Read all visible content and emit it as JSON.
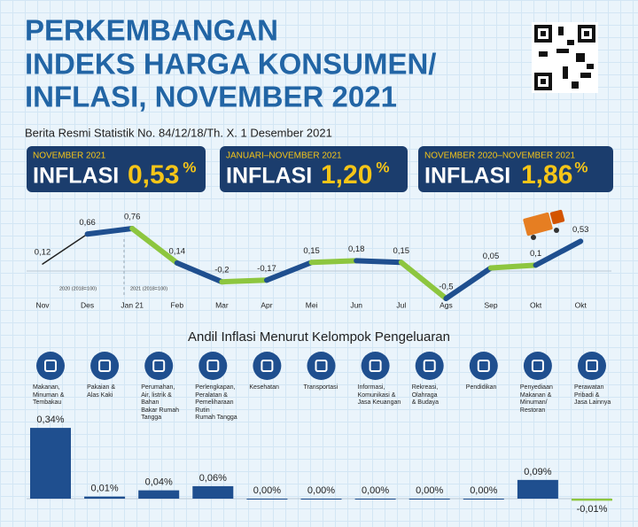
{
  "header": {
    "title_lines": [
      "PERKEMBANGAN",
      "INDEKS HARGA KONSUMEN/",
      "INFLASI, NOVEMBER 2021"
    ],
    "subtitle": "Berita Resmi Statistik No. 84/12/18/Th. X. 1 Desember 2021"
  },
  "boxes": [
    {
      "period": "NOVEMBER 2021",
      "label": "INFLASI",
      "value": "0,53",
      "unit": "%"
    },
    {
      "period": "JANUARI–NOVEMBER 2021",
      "label": "INFLASI",
      "value": "1,20",
      "unit": "%"
    },
    {
      "period": "NOVEMBER 2020–NOVEMBER 2021",
      "label": "INFLASI",
      "value": "1,86",
      "unit": "%"
    }
  ],
  "chart_data": [
    {
      "type": "line",
      "categories": [
        "Nov",
        "Des",
        "Jan 21",
        "Feb",
        "Mar",
        "Apr",
        "Mei",
        "Jun",
        "Jul",
        "Ags",
        "Sep",
        "Okt",
        "Okt"
      ],
      "values": [
        0.12,
        0.66,
        0.76,
        0.14,
        -0.2,
        -0.17,
        0.15,
        0.18,
        0.15,
        -0.5,
        0.05,
        0.1,
        0.53
      ],
      "value_labels": [
        "0,12",
        "0,66",
        "0,76",
        "0,14",
        "-0,2",
        "-0,17",
        "0,15",
        "0,18",
        "0,15",
        "-0,5",
        "0,05",
        "0,1",
        "0,53"
      ],
      "segment_colors": [
        "#222222",
        "#1f4f8f",
        "#8dc63f",
        "#1f4f8f",
        "#8dc63f",
        "#1f4f8f",
        "#8dc63f",
        "#1f4f8f",
        "#8dc63f",
        "#1f4f8f",
        "#8dc63f",
        "#1f4f8f"
      ],
      "annotations": [
        "2020 (2018=100)",
        "2021 (2018=100)"
      ]
    },
    {
      "type": "bar",
      "title": "Andil Inflasi Menurut Kelompok Pengeluaran",
      "categories": [
        "Makanan,\nMinuman &\nTembakau",
        "Pakaian &\nAlas Kaki",
        "Perumahan,\nAir, listrik &\nBahan\nBakar Rumah\nTangga",
        "Perlengkapan,\nPeralatan &\nPemeliharaan\nRutin\nRumah Tangga",
        "Kesehatan",
        "Transportasi",
        "Informasi,\nKomunikasi &\nJasa Keuangan",
        "Rekreasi,\nOlahraga\n& Budaya",
        "Pendidikan",
        "Penyediaan\nMakanan &\nMinuman/\nRestoran",
        "Perawatan\nPribadi &\nJasa Lainnya"
      ],
      "values": [
        0.34,
        0.01,
        0.04,
        0.06,
        0,
        0,
        0,
        0,
        0,
        0.09,
        -0.01
      ],
      "value_labels": [
        "0,34%",
        "0,01%",
        "0,04%",
        "0,06%",
        "0,00%",
        "0,00%",
        "0,00%",
        "0,00%",
        "0,00%",
        "0,09%",
        "-0,01%"
      ],
      "color": "#1f4f8f",
      "negative_color": "#8dc63f"
    }
  ]
}
